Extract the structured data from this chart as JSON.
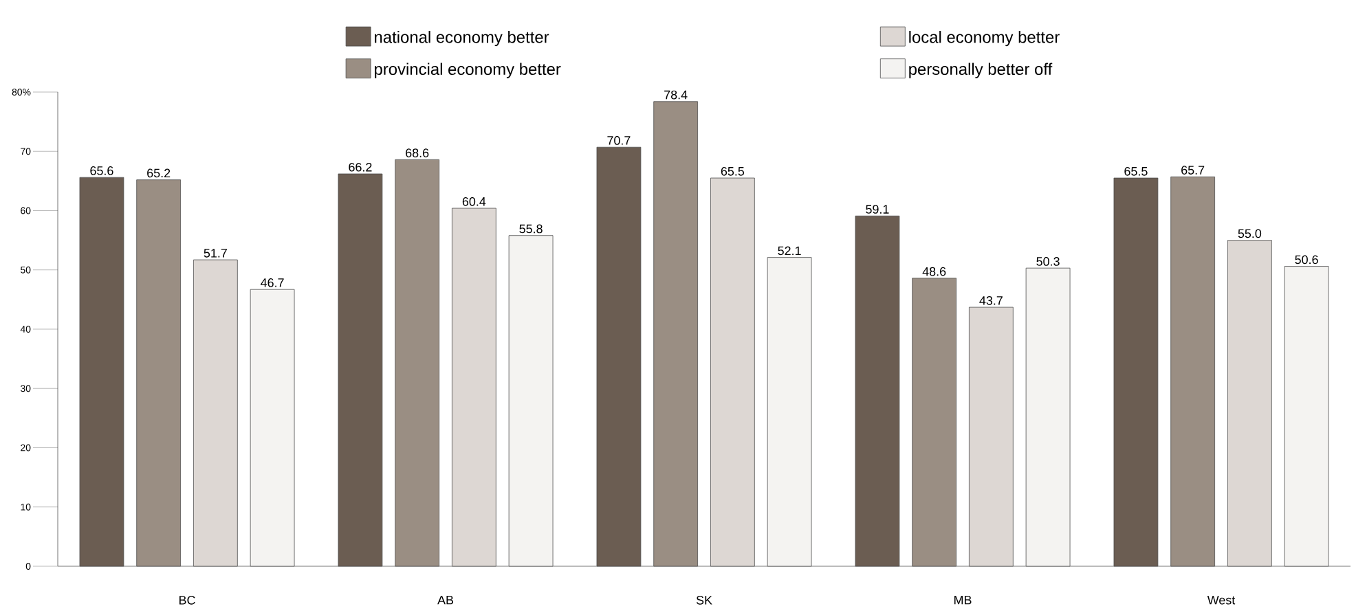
{
  "chart_data": {
    "type": "bar",
    "categories": [
      "BC",
      "AB",
      "SK",
      "MB",
      "West"
    ],
    "series": [
      {
        "name": "national economy better",
        "color": "#6b5d52",
        "values": [
          65.6,
          66.2,
          70.7,
          59.1,
          65.5
        ],
        "value_labels": [
          "65.6",
          "66.2",
          "70.7",
          "59.1",
          "65.5"
        ]
      },
      {
        "name": "provincial economy better",
        "color": "#9a8e83",
        "values": [
          65.2,
          68.6,
          78.4,
          48.6,
          65.7
        ],
        "value_labels": [
          "65.2",
          "68.6",
          "78.4",
          "48.6",
          "65.7"
        ]
      },
      {
        "name": "local economy better",
        "color": "#ddd7d3",
        "values": [
          51.7,
          60.4,
          65.5,
          43.7,
          55.0
        ],
        "value_labels": [
          "51.7",
          "60.4",
          "65.5",
          "43.7",
          "55.0"
        ]
      },
      {
        "name": "personally better off",
        "color": "#f4f3f1",
        "values": [
          46.7,
          55.8,
          52.1,
          50.3,
          50.6
        ],
        "value_labels": [
          "46.7",
          "55.8",
          "52.1",
          "50.3",
          "50.6"
        ]
      }
    ],
    "ylim": [
      0,
      80
    ],
    "yticks": [
      0,
      10,
      20,
      30,
      40,
      50,
      60,
      70,
      {
        "value": 80,
        "label": "80%"
      }
    ],
    "grid": false,
    "legend": "top"
  }
}
